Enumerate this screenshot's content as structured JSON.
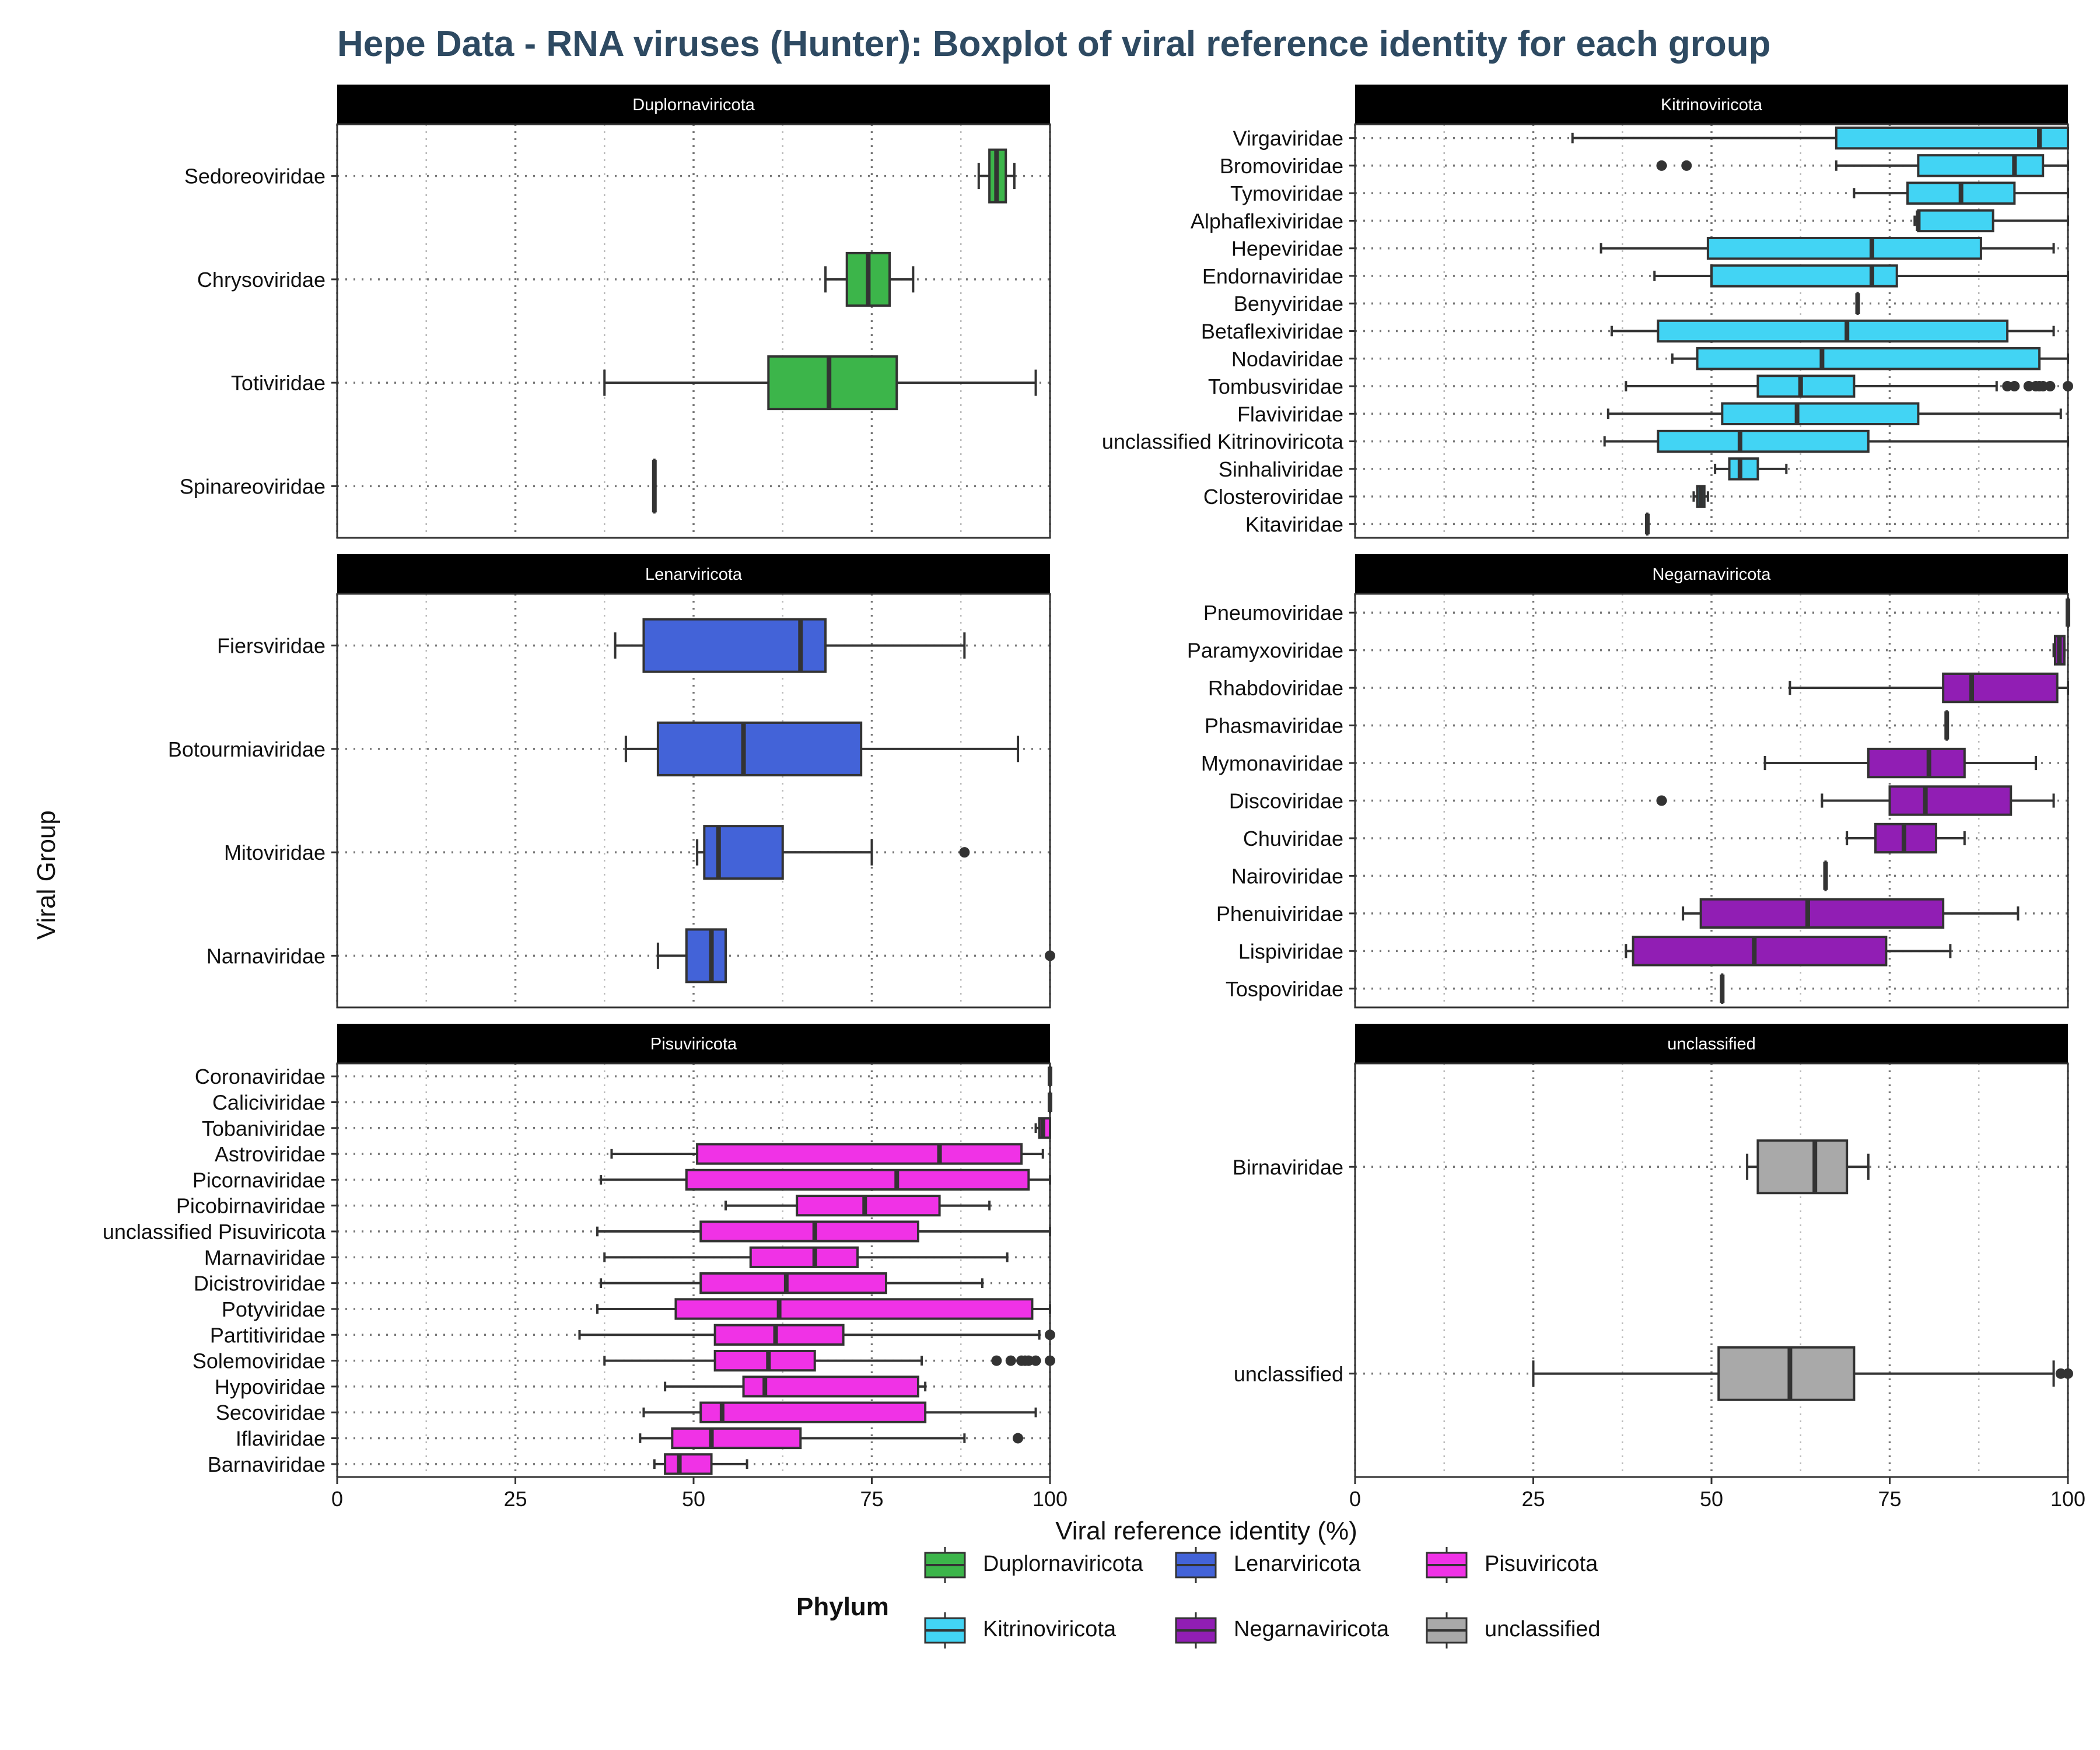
{
  "title": "Hepe Data - RNA viruses (Hunter): Boxplot of viral reference identity for each group",
  "xlabel": "Viral reference identity (%)",
  "ylabel": "Viral Group",
  "legend": {
    "title": "Phylum",
    "items": [
      {
        "label": "Duplornaviricota",
        "color": "#3cb54a"
      },
      {
        "label": "Lenarviricota",
        "color": "#4363d8"
      },
      {
        "label": "Pisuviricota",
        "color": "#f032e6"
      },
      {
        "label": "Kitrinoviricota",
        "color": "#42d4f4"
      },
      {
        "label": "Negarnaviricota",
        "color": "#911eb4"
      },
      {
        "label": "unclassified",
        "color": "#a9a9a9"
      }
    ]
  },
  "x_ticks": [
    "0",
    "25",
    "50",
    "75",
    "100"
  ],
  "chart_data": [
    {
      "type": "boxplot",
      "facet": "Duplornaviricota",
      "color": "#3cb54a",
      "xlim": [
        0,
        100
      ],
      "groups": [
        {
          "name": "Sedoreoviridae",
          "min": 90,
          "q1": 91.5,
          "median": 92.5,
          "q3": 93.8,
          "max": 95,
          "outliers": []
        },
        {
          "name": "Chrysoviridae",
          "min": 68.5,
          "q1": 71.5,
          "median": 74.5,
          "q3": 77.5,
          "max": 80.8,
          "outliers": []
        },
        {
          "name": "Totiviridae",
          "min": 37.5,
          "q1": 60.5,
          "median": 69,
          "q3": 78.5,
          "max": 98,
          "outliers": []
        },
        {
          "name": "Spinareoviridae",
          "min": 44.5,
          "q1": 44.5,
          "median": 44.5,
          "q3": 44.5,
          "max": 44.5,
          "outliers": []
        }
      ]
    },
    {
      "type": "boxplot",
      "facet": "Kitrinoviricota",
      "color": "#42d4f4",
      "xlim": [
        0,
        100
      ],
      "groups": [
        {
          "name": "Virgaviridae",
          "min": 30.5,
          "q1": 67.5,
          "median": 96,
          "q3": 100,
          "max": 100,
          "outliers": []
        },
        {
          "name": "Bromoviridae",
          "min": 67.5,
          "q1": 79,
          "median": 92.5,
          "q3": 96.5,
          "max": 100,
          "outliers": [
            43,
            46.5
          ]
        },
        {
          "name": "Tymoviridae",
          "min": 70,
          "q1": 77.5,
          "median": 85,
          "q3": 92.5,
          "max": 100,
          "outliers": []
        },
        {
          "name": "Alphaflexiviridae",
          "min": 78.5,
          "q1": 79,
          "median": 79,
          "q3": 89.5,
          "max": 100,
          "outliers": []
        },
        {
          "name": "Hepeviridae",
          "min": 34.5,
          "q1": 49.5,
          "median": 72.5,
          "q3": 87.8,
          "max": 98,
          "outliers": []
        },
        {
          "name": "Endornaviridae",
          "min": 42,
          "q1": 50,
          "median": 72.5,
          "q3": 76,
          "max": 100,
          "outliers": []
        },
        {
          "name": "Benyviridae",
          "min": 70.5,
          "q1": 70.5,
          "median": 70.5,
          "q3": 70.5,
          "max": 70.5,
          "outliers": []
        },
        {
          "name": "Betaflexiviridae",
          "min": 36,
          "q1": 42.5,
          "median": 69,
          "q3": 91.5,
          "max": 98,
          "outliers": []
        },
        {
          "name": "Nodaviridae",
          "min": 44.5,
          "q1": 48,
          "median": 65.5,
          "q3": 96,
          "max": 100,
          "outliers": []
        },
        {
          "name": "Tombusviridae",
          "min": 38,
          "q1": 56.5,
          "median": 62.5,
          "q3": 70,
          "max": 90,
          "outliers": [
            91.5,
            92.5,
            94.5,
            95.5,
            96,
            96.5,
            97.5,
            100
          ]
        },
        {
          "name": "Flaviviridae",
          "min": 35.5,
          "q1": 51.5,
          "median": 62,
          "q3": 79,
          "max": 99,
          "outliers": []
        },
        {
          "name": "unclassified Kitrinoviricota",
          "min": 35,
          "q1": 42.5,
          "median": 54,
          "q3": 72,
          "max": 100,
          "outliers": []
        },
        {
          "name": "Sinhaliviridae",
          "min": 50.5,
          "q1": 52.5,
          "median": 54,
          "q3": 56.5,
          "max": 60.5,
          "outliers": []
        },
        {
          "name": "Closteroviridae",
          "min": 47.5,
          "q1": 48,
          "median": 48.5,
          "q3": 49,
          "max": 49.5,
          "outliers": []
        },
        {
          "name": "Kitaviridae",
          "min": 41,
          "q1": 41,
          "median": 41,
          "q3": 41,
          "max": 41,
          "outliers": []
        }
      ]
    },
    {
      "type": "boxplot",
      "facet": "Lenarviricota",
      "color": "#4363d8",
      "xlim": [
        0,
        100
      ],
      "groups": [
        {
          "name": "Fiersviridae",
          "min": 39,
          "q1": 43,
          "median": 65,
          "q3": 68.5,
          "max": 88,
          "outliers": []
        },
        {
          "name": "Botourmiaviridae",
          "min": 40.5,
          "q1": 45,
          "median": 57,
          "q3": 73.5,
          "max": 95.5,
          "outliers": []
        },
        {
          "name": "Mitoviridae",
          "min": 50.5,
          "q1": 51.5,
          "median": 53.5,
          "q3": 62.5,
          "max": 75,
          "outliers": [
            88
          ]
        },
        {
          "name": "Narnaviridae",
          "min": 45,
          "q1": 49,
          "median": 52.5,
          "q3": 54.5,
          "max": 54.5,
          "outliers": [
            100
          ]
        }
      ]
    },
    {
      "type": "boxplot",
      "facet": "Negarnaviricota",
      "color": "#911eb4",
      "xlim": [
        0,
        100
      ],
      "groups": [
        {
          "name": "Pneumoviridae",
          "min": 100,
          "q1": 100,
          "median": 100,
          "q3": 100,
          "max": 100,
          "outliers": []
        },
        {
          "name": "Paramyxoviridae",
          "min": 98,
          "q1": 98.2,
          "median": 98.8,
          "q3": 99.5,
          "max": 99.5,
          "outliers": []
        },
        {
          "name": "Rhabdoviridae",
          "min": 61,
          "q1": 82.5,
          "median": 86.5,
          "q3": 98.5,
          "max": 100,
          "outliers": []
        },
        {
          "name": "Phasmaviridae",
          "min": 83,
          "q1": 83,
          "median": 83,
          "q3": 83,
          "max": 83,
          "outliers": []
        },
        {
          "name": "Mymonaviridae",
          "min": 57.5,
          "q1": 72,
          "median": 80.5,
          "q3": 85.5,
          "max": 95.5,
          "outliers": []
        },
        {
          "name": "Discoviridae",
          "min": 65.5,
          "q1": 75,
          "median": 80,
          "q3": 92,
          "max": 98,
          "outliers": [
            43
          ]
        },
        {
          "name": "Chuviridae",
          "min": 69,
          "q1": 73,
          "median": 77,
          "q3": 81.5,
          "max": 85.5,
          "outliers": []
        },
        {
          "name": "Nairoviridae",
          "min": 66,
          "q1": 66,
          "median": 66,
          "q3": 66,
          "max": 66,
          "outliers": []
        },
        {
          "name": "Phenuiviridae",
          "min": 46,
          "q1": 48.5,
          "median": 63.5,
          "q3": 82.5,
          "max": 93,
          "outliers": []
        },
        {
          "name": "Lispiviridae",
          "min": 38,
          "q1": 39,
          "median": 56,
          "q3": 74.5,
          "max": 83.5,
          "outliers": []
        },
        {
          "name": "Tospoviridae",
          "min": 51.5,
          "q1": 51.5,
          "median": 51.5,
          "q3": 51.5,
          "max": 51.5,
          "outliers": []
        }
      ]
    },
    {
      "type": "boxplot",
      "facet": "Pisuviricota",
      "color": "#f032e6",
      "xlim": [
        0,
        100
      ],
      "groups": [
        {
          "name": "Coronaviridae",
          "min": 100,
          "q1": 100,
          "median": 100,
          "q3": 100,
          "max": 100,
          "outliers": []
        },
        {
          "name": "Caliciviridae",
          "min": 100,
          "q1": 100,
          "median": 100,
          "q3": 100,
          "max": 100,
          "outliers": []
        },
        {
          "name": "Tobaniviridae",
          "min": 98,
          "q1": 98.5,
          "median": 99,
          "q3": 100,
          "max": 100,
          "outliers": []
        },
        {
          "name": "Astroviridae",
          "min": 38.5,
          "q1": 50.5,
          "median": 84.5,
          "q3": 96,
          "max": 99,
          "outliers": []
        },
        {
          "name": "Picornaviridae",
          "min": 37,
          "q1": 49,
          "median": 78.5,
          "q3": 97,
          "max": 100,
          "outliers": []
        },
        {
          "name": "Picobirnaviridae",
          "min": 54.5,
          "q1": 64.5,
          "median": 74,
          "q3": 84.5,
          "max": 91.5,
          "outliers": []
        },
        {
          "name": "unclassified Pisuviricota",
          "min": 36.5,
          "q1": 51,
          "median": 67,
          "q3": 81.5,
          "max": 100,
          "outliers": []
        },
        {
          "name": "Marnaviridae",
          "min": 37.5,
          "q1": 58,
          "median": 67,
          "q3": 73,
          "max": 94,
          "outliers": []
        },
        {
          "name": "Dicistroviridae",
          "min": 37,
          "q1": 51,
          "median": 63,
          "q3": 77,
          "max": 90.5,
          "outliers": []
        },
        {
          "name": "Potyviridae",
          "min": 36.5,
          "q1": 47.5,
          "median": 62,
          "q3": 97.5,
          "max": 100,
          "outliers": []
        },
        {
          "name": "Partitiviridae",
          "min": 34,
          "q1": 53,
          "median": 61.5,
          "q3": 71,
          "max": 98.5,
          "outliers": [
            100
          ]
        },
        {
          "name": "Solemoviridae",
          "min": 37.5,
          "q1": 53,
          "median": 60.5,
          "q3": 67,
          "max": 82,
          "outliers": [
            92.5,
            94.5,
            96,
            96.5,
            97,
            98,
            100
          ]
        },
        {
          "name": "Hypoviridae",
          "min": 46,
          "q1": 57,
          "median": 60,
          "q3": 81.5,
          "max": 82.5,
          "outliers": []
        },
        {
          "name": "Secoviridae",
          "min": 43,
          "q1": 51,
          "median": 54,
          "q3": 82.5,
          "max": 98,
          "outliers": []
        },
        {
          "name": "Iflaviridae",
          "min": 42.5,
          "q1": 47,
          "median": 52.5,
          "q3": 65,
          "max": 88,
          "outliers": [
            95.5
          ]
        },
        {
          "name": "Barnaviridae",
          "min": 44.5,
          "q1": 46,
          "median": 48,
          "q3": 52.5,
          "max": 57.5,
          "outliers": []
        }
      ]
    },
    {
      "type": "boxplot",
      "facet": "unclassified",
      "color": "#a9a9a9",
      "xlim": [
        0,
        100
      ],
      "groups": [
        {
          "name": "Birnaviridae",
          "min": 55,
          "q1": 56.5,
          "median": 64.5,
          "q3": 69,
          "max": 72,
          "outliers": []
        },
        {
          "name": "unclassified",
          "min": 25,
          "q1": 51,
          "median": 61,
          "q3": 70,
          "max": 98,
          "outliers": [
            99,
            100
          ]
        }
      ]
    }
  ]
}
